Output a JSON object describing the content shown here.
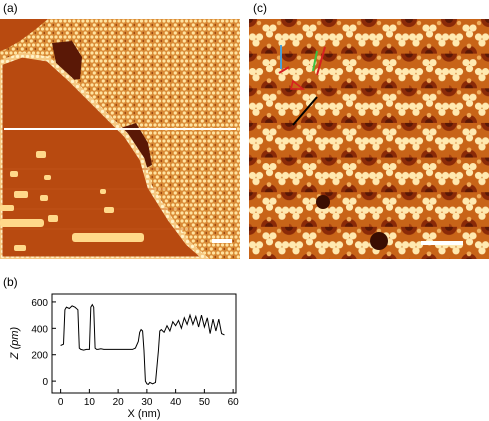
{
  "panels": {
    "a": {
      "label": "(a)"
    },
    "b": {
      "label": "(b)"
    },
    "c": {
      "label": "(c)"
    }
  },
  "colors": {
    "terrace_low": "#b84a10",
    "terrace_high": "#d98a35",
    "molecule_bright": "#ffe9b0",
    "pore_dark": "#5a1806",
    "line_profile_marker": "#ffffff",
    "scale_bar": "#ffffff",
    "annotation_blue": "#4aa0d8",
    "annotation_green": "#3fbf3f",
    "annotation_red": "#d82020",
    "annotation_black": "#000000"
  },
  "chart_data": {
    "type": "line",
    "xlabel": "X (nm)",
    "ylabel": "Z (pm)",
    "xlim": [
      -3,
      61
    ],
    "ylim": [
      -90,
      660
    ],
    "xticks": [
      0,
      10,
      20,
      30,
      40,
      50,
      60
    ],
    "yticks": [
      0,
      200,
      400,
      600
    ],
    "grid": false,
    "series": [
      {
        "x": [
          0,
          1,
          1.5,
          2,
          3,
          4,
          5,
          6,
          6.5,
          7,
          8,
          9,
          10,
          10.5,
          11,
          11.5,
          12,
          12.5,
          13,
          14,
          15,
          20,
          25,
          26,
          27,
          27.5,
          28,
          28.5,
          29,
          29.5,
          30,
          30.5,
          31,
          32,
          33,
          34,
          34.5,
          35,
          36,
          37,
          38,
          39,
          40,
          41,
          42,
          43,
          44,
          45,
          46,
          47,
          48,
          49,
          50,
          51,
          52,
          53,
          54,
          55,
          56,
          57
        ],
        "y": [
          270,
          280,
          540,
          560,
          550,
          570,
          560,
          540,
          250,
          240,
          235,
          240,
          240,
          560,
          580,
          560,
          250,
          240,
          240,
          245,
          240,
          240,
          240,
          250,
          300,
          370,
          390,
          380,
          230,
          0,
          -20,
          -25,
          -10,
          -20,
          -10,
          230,
          380,
          390,
          370,
          420,
          380,
          450,
          420,
          460,
          400,
          480,
          430,
          500,
          430,
          490,
          410,
          500,
          410,
          480,
          360,
          470,
          380,
          470,
          360,
          350
        ]
      }
    ]
  }
}
